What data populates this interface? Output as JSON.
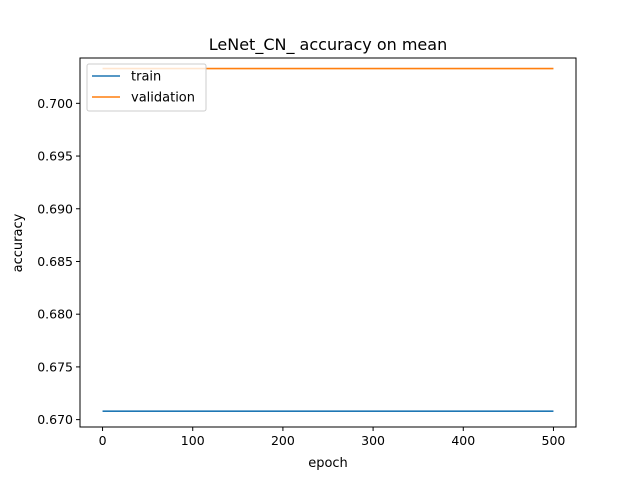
{
  "chart_data": {
    "type": "line",
    "title": "LeNet_CN_ accuracy on mean",
    "xlabel": "epoch",
    "ylabel": "accuracy",
    "xlim": [
      -25,
      525
    ],
    "ylim": [
      0.6693,
      0.7043
    ],
    "xticks": [
      0,
      100,
      200,
      300,
      400,
      500
    ],
    "xtick_labels": [
      "0",
      "100",
      "200",
      "300",
      "400",
      "500"
    ],
    "yticks": [
      0.67,
      0.675,
      0.68,
      0.685,
      0.69,
      0.695,
      0.7
    ],
    "ytick_labels": [
      "0.670",
      "0.675",
      "0.680",
      "0.685",
      "0.690",
      "0.695",
      "0.700"
    ],
    "grid": false,
    "legend_position": "upper-left",
    "series": [
      {
        "name": "train",
        "color": "#1f77b4",
        "x": [
          0,
          500
        ],
        "y": [
          0.6708,
          0.6708
        ]
      },
      {
        "name": "validation",
        "color": "#ff7f0e",
        "x": [
          0,
          500
        ],
        "y": [
          0.7033,
          0.7033
        ]
      }
    ]
  }
}
